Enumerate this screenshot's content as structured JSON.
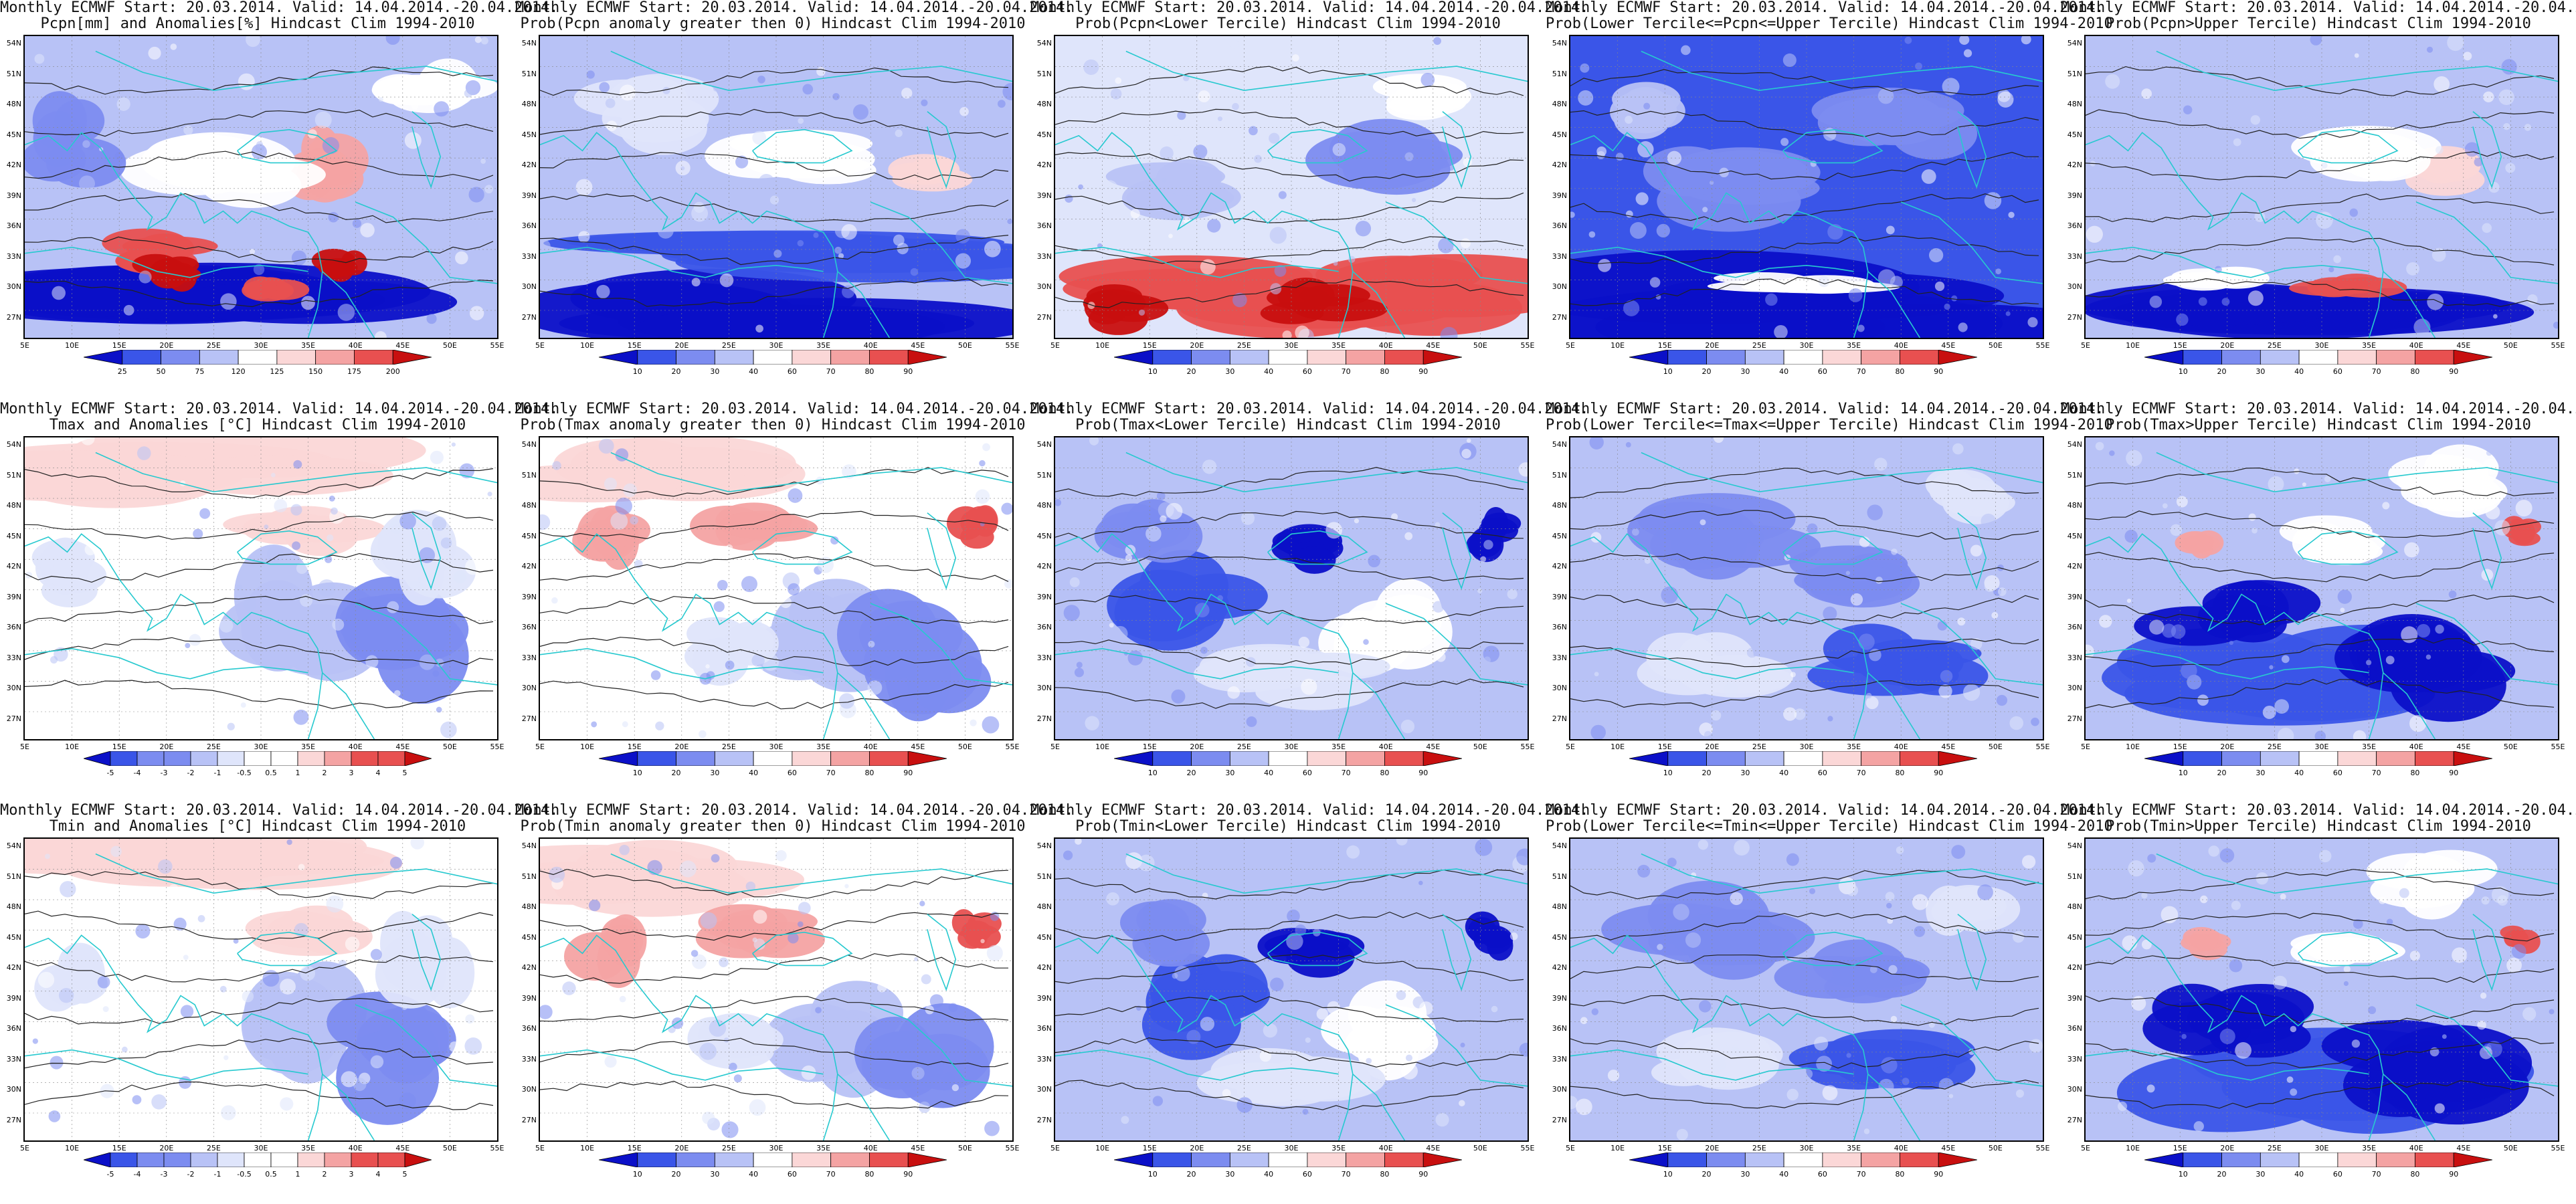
{
  "title_line1": "Monthly ECMWF Start: 20.03.2014. Valid: 14.04.2014.-20.04.2014.",
  "lat_labels": [
    "54N",
    "51N",
    "48N",
    "45N",
    "42N",
    "39N",
    "36N",
    "33N",
    "30N",
    "27N"
  ],
  "lon_labels": [
    "5E",
    "10E",
    "15E",
    "20E",
    "25E",
    "30E",
    "35E",
    "40E",
    "45E",
    "50E",
    "55E"
  ],
  "palette": {
    "deep_blue": "#0b10c8",
    "blue": "#3a55e8",
    "mid_blue": "#7c8cf0",
    "light_blue": "#b8c2f6",
    "pale_blue": "#dfe5fb",
    "white": "#ffffff",
    "pale_red": "#fbd7d7",
    "light_red": "#f4a3a3",
    "red": "#e85050",
    "deep_red": "#c80f0f",
    "coast": "#27c9cf",
    "contour": "#222222"
  },
  "colorbars": {
    "pcpn_anom": [
      "25",
      "50",
      "75",
      "120",
      "125",
      "150",
      "175",
      "200"
    ],
    "t_anom": [
      "-5",
      "-4",
      "-3",
      "-2",
      "-1",
      "-0.5",
      "0.5",
      "1",
      "2",
      "3",
      "4",
      "5"
    ],
    "prob": [
      "10",
      "20",
      "30",
      "40",
      "60",
      "70",
      "80",
      "90"
    ]
  },
  "panels": [
    {
      "title2": "Pcpn[mm] and Anomalies[%] Hindcast Clim 1994-2010",
      "scheme": "pcpn_anom",
      "cbar": "pcpn_anom"
    },
    {
      "title2": "Prob(Pcpn anomaly greater then 0) Hindcast Clim 1994-2010",
      "scheme": "pcpn_prob0",
      "cbar": "prob"
    },
    {
      "title2": "Prob(Pcpn<Lower Tercile) Hindcast Clim 1994-2010",
      "scheme": "pcpn_lower",
      "cbar": "prob"
    },
    {
      "title2": "Prob(Lower Tercile<=Pcpn<=Upper Tercile) Hindcast Clim 1994-2010",
      "scheme": "pcpn_mid",
      "cbar": "prob"
    },
    {
      "title2": "Prob(Pcpn>Upper Tercile) Hindcast Clim 1994-2010",
      "scheme": "pcpn_upper",
      "cbar": "prob"
    },
    {
      "title2": "Tmax and Anomalies [°C] Hindcast Clim 1994-2010",
      "scheme": "t_anom",
      "cbar": "t_anom"
    },
    {
      "title2": "Prob(Tmax anomaly greater then 0) Hindcast Clim 1994-2010",
      "scheme": "t_prob0",
      "cbar": "prob"
    },
    {
      "title2": "Prob(Tmax<Lower Tercile) Hindcast Clim 1994-2010",
      "scheme": "t_lower",
      "cbar": "prob"
    },
    {
      "title2": "Prob(Lower Tercile<=Tmax<=Upper Tercile) Hindcast Clim 1994-2010",
      "scheme": "t_mid",
      "cbar": "prob"
    },
    {
      "title2": "Prob(Tmax>Upper Tercile) Hindcast Clim 1994-2010",
      "scheme": "t_upper",
      "cbar": "prob"
    },
    {
      "title2": "Tmin and Anomalies [°C] Hindcast Clim 1994-2010",
      "scheme": "t_anom",
      "cbar": "t_anom"
    },
    {
      "title2": "Prob(Tmin anomaly greater then 0) Hindcast Clim 1994-2010",
      "scheme": "t_prob0",
      "cbar": "prob"
    },
    {
      "title2": "Prob(Tmin<Lower Tercile) Hindcast Clim 1994-2010",
      "scheme": "t_lower",
      "cbar": "prob"
    },
    {
      "title2": "Prob(Lower Tercile<=Tmin<=Upper Tercile) Hindcast Clim 1994-2010",
      "scheme": "t_mid",
      "cbar": "prob"
    },
    {
      "title2": "Prob(Tmin>Upper Tercile) Hindcast Clim 1994-2010",
      "scheme": "t_upper",
      "cbar": "prob"
    }
  ]
}
